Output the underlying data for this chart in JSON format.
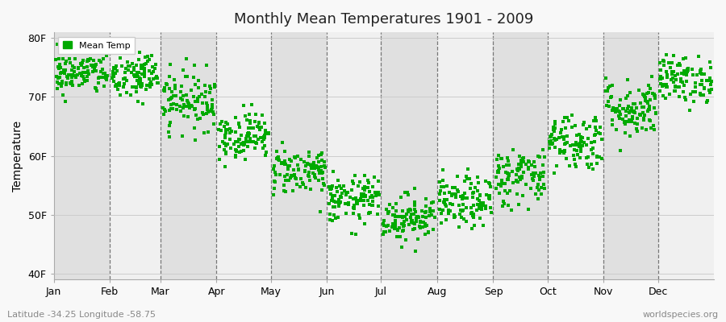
{
  "title": "Monthly Mean Temperatures 1901 - 2009",
  "ylabel": "Temperature",
  "xlabel_labels": [
    "Jan",
    "Feb",
    "Mar",
    "Apr",
    "May",
    "Jun",
    "Jul",
    "Aug",
    "Sep",
    "Oct",
    "Nov",
    "Dec"
  ],
  "ytick_labels": [
    "40F",
    "50F",
    "60F",
    "70F",
    "80F"
  ],
  "ytick_values": [
    40,
    50,
    60,
    70,
    80
  ],
  "ylim": [
    39,
    81
  ],
  "legend_label": "Mean Temp",
  "dot_color": "#00aa00",
  "dot_size": 5,
  "subtitle": "Latitude -34.25 Longitude -58.75",
  "watermark": "worldspecies.org",
  "bg_color_light": "#f0f0f0",
  "bg_color_dark": "#e0e0e0",
  "fig_bg": "#f8f8f8",
  "n_years": 109,
  "monthly_means": [
    74.0,
    73.5,
    69.5,
    63.5,
    57.5,
    52.5,
    49.5,
    52.0,
    56.5,
    62.5,
    68.0,
    73.0
  ],
  "monthly_stds": [
    1.8,
    2.2,
    2.5,
    2.0,
    2.0,
    2.0,
    2.0,
    2.2,
    2.5,
    2.5,
    2.5,
    2.0
  ],
  "month_days": [
    31,
    28,
    31,
    30,
    31,
    30,
    31,
    31,
    30,
    31,
    30,
    31
  ],
  "total_days": 365
}
